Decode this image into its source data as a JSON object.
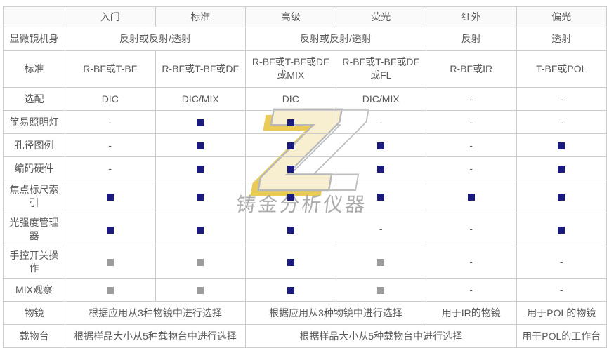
{
  "table": {
    "columns": [
      {
        "key": "rowhead",
        "label": ""
      },
      {
        "key": "entry",
        "label": "入门"
      },
      {
        "key": "standard",
        "label": "标准"
      },
      {
        "key": "advanced",
        "label": "高级"
      },
      {
        "key": "fluorescence",
        "label": "荧光"
      },
      {
        "key": "infrared",
        "label": "红外"
      },
      {
        "key": "polarized",
        "label": "偏光"
      }
    ],
    "rows": [
      {
        "key": "microscope-body",
        "label": "显微镜机身",
        "cells": [
          {
            "type": "text",
            "value": "反射或反射/透射",
            "span": 2
          },
          {
            "type": "text",
            "value": "反射或反射/透射",
            "span": 2
          },
          {
            "type": "text",
            "value": "反射",
            "span": 1
          },
          {
            "type": "text",
            "value": "透射",
            "span": 1
          }
        ]
      },
      {
        "key": "standard-modes",
        "label": "标准",
        "tall": true,
        "cells": [
          {
            "type": "text",
            "value": "R-BF或T-BF",
            "span": 1
          },
          {
            "type": "text",
            "value": "R-BF或T-BF或DF",
            "span": 1
          },
          {
            "type": "text",
            "value": "R-BF或T-BF或DF或MIX",
            "span": 1
          },
          {
            "type": "text",
            "value": "R-BF或T-BF或DF或FL",
            "span": 1
          },
          {
            "type": "text",
            "value": "R-BF或IR",
            "span": 1
          },
          {
            "type": "text",
            "value": "T-BF或POL",
            "span": 1
          }
        ]
      },
      {
        "key": "optional-modes",
        "label": "选配",
        "cells": [
          {
            "type": "text",
            "value": "DIC",
            "span": 1
          },
          {
            "type": "text",
            "value": "DIC/MIX",
            "span": 1
          },
          {
            "type": "text",
            "value": "DIC",
            "span": 1
          },
          {
            "type": "text",
            "value": "DIC/MIX",
            "span": 1
          },
          {
            "type": "dash",
            "value": "-",
            "span": 1
          },
          {
            "type": "dash",
            "value": "-",
            "span": 1
          }
        ]
      },
      {
        "key": "simple-illuminator",
        "label": "简易照明灯",
        "cells": [
          {
            "type": "dash",
            "value": "-",
            "span": 1
          },
          {
            "type": "square",
            "color": "navy",
            "span": 1
          },
          {
            "type": "square",
            "color": "navy",
            "span": 1
          },
          {
            "type": "dash",
            "value": "-",
            "span": 1
          },
          {
            "type": "dash",
            "value": "-",
            "span": 1
          },
          {
            "type": "dash",
            "value": "-",
            "span": 1
          }
        ]
      },
      {
        "key": "aperture-diagram",
        "label": "孔径图例",
        "cells": [
          {
            "type": "dash",
            "value": "-",
            "span": 1
          },
          {
            "type": "square",
            "color": "navy",
            "span": 1
          },
          {
            "type": "square",
            "color": "navy",
            "span": 1
          },
          {
            "type": "square",
            "color": "navy",
            "span": 1
          },
          {
            "type": "dash",
            "value": "-",
            "span": 1
          },
          {
            "type": "square",
            "color": "navy",
            "span": 1
          }
        ]
      },
      {
        "key": "coded-hardware",
        "label": "编码硬件",
        "cells": [
          {
            "type": "dash",
            "value": "-",
            "span": 1
          },
          {
            "type": "square",
            "color": "navy",
            "span": 1
          },
          {
            "type": "square",
            "color": "navy",
            "span": 1
          },
          {
            "type": "square",
            "color": "navy",
            "span": 1
          },
          {
            "type": "dash",
            "value": "-",
            "span": 1
          },
          {
            "type": "square",
            "color": "navy",
            "span": 1
          }
        ]
      },
      {
        "key": "focus-scale-index",
        "label": "焦点标尺索引",
        "cells": [
          {
            "type": "square",
            "color": "navy",
            "span": 1
          },
          {
            "type": "square",
            "color": "navy",
            "span": 1
          },
          {
            "type": "square",
            "color": "navy",
            "span": 1
          },
          {
            "type": "square",
            "color": "navy",
            "span": 1
          },
          {
            "type": "square",
            "color": "navy",
            "span": 1
          },
          {
            "type": "square",
            "color": "navy",
            "span": 1
          }
        ]
      },
      {
        "key": "light-intensity-manager",
        "label": "光强度管理器",
        "cells": [
          {
            "type": "square",
            "color": "navy",
            "span": 1
          },
          {
            "type": "square",
            "color": "navy",
            "span": 1
          },
          {
            "type": "square",
            "color": "navy",
            "span": 1
          },
          {
            "type": "dash",
            "value": "-",
            "span": 1
          },
          {
            "type": "dash",
            "value": "-",
            "span": 1
          },
          {
            "type": "square",
            "color": "navy",
            "span": 1
          }
        ]
      },
      {
        "key": "manual-switch-operation",
        "label": "手控开关操作",
        "cells": [
          {
            "type": "square",
            "color": "gray",
            "span": 1
          },
          {
            "type": "square",
            "color": "gray",
            "span": 1
          },
          {
            "type": "square",
            "color": "navy",
            "span": 1
          },
          {
            "type": "square",
            "color": "gray",
            "span": 1
          },
          {
            "type": "dash",
            "value": "-",
            "span": 1
          },
          {
            "type": "dash",
            "value": "-",
            "span": 1
          }
        ]
      },
      {
        "key": "mix-observation",
        "label": "MIX观察",
        "cells": [
          {
            "type": "square",
            "color": "gray",
            "span": 1
          },
          {
            "type": "square",
            "color": "gray",
            "span": 1
          },
          {
            "type": "square",
            "color": "navy",
            "span": 1
          },
          {
            "type": "square",
            "color": "gray",
            "span": 1
          },
          {
            "type": "dash",
            "value": "-",
            "span": 1
          },
          {
            "type": "dash",
            "value": "-",
            "span": 1
          }
        ]
      },
      {
        "key": "objective",
        "label": "物镜",
        "cells": [
          {
            "type": "text",
            "value": "根据应用从3种物镜中进行选择",
            "span": 2
          },
          {
            "type": "text",
            "value": "根据应用从3种物镜中进行选择",
            "span": 2
          },
          {
            "type": "text",
            "value": "用于IR的物镜",
            "span": 1
          },
          {
            "type": "text",
            "value": "用于POL的物镜",
            "span": 1
          }
        ]
      },
      {
        "key": "stage",
        "label": "载物台",
        "cells": [
          {
            "type": "text",
            "value": "根据样品大小从5种载物台中进行选择",
            "span": 2
          },
          {
            "type": "text",
            "value": "根据样品大小从5种载物台中进行选择",
            "span": 3
          },
          {
            "type": "text",
            "value": "用于POL的工作台",
            "span": 1
          }
        ]
      }
    ]
  },
  "watermark": {
    "text": "铸金分析仪器",
    "logo_letter": "Z"
  },
  "colors": {
    "included_square": "#1b1b7e",
    "partial_square": "#9b9b9b",
    "border": "#cccccc",
    "text": "#595959",
    "watermark_cream": "#f7efcd",
    "watermark_gold": "#eac94f",
    "watermark_gray": "#a8a8a8"
  }
}
